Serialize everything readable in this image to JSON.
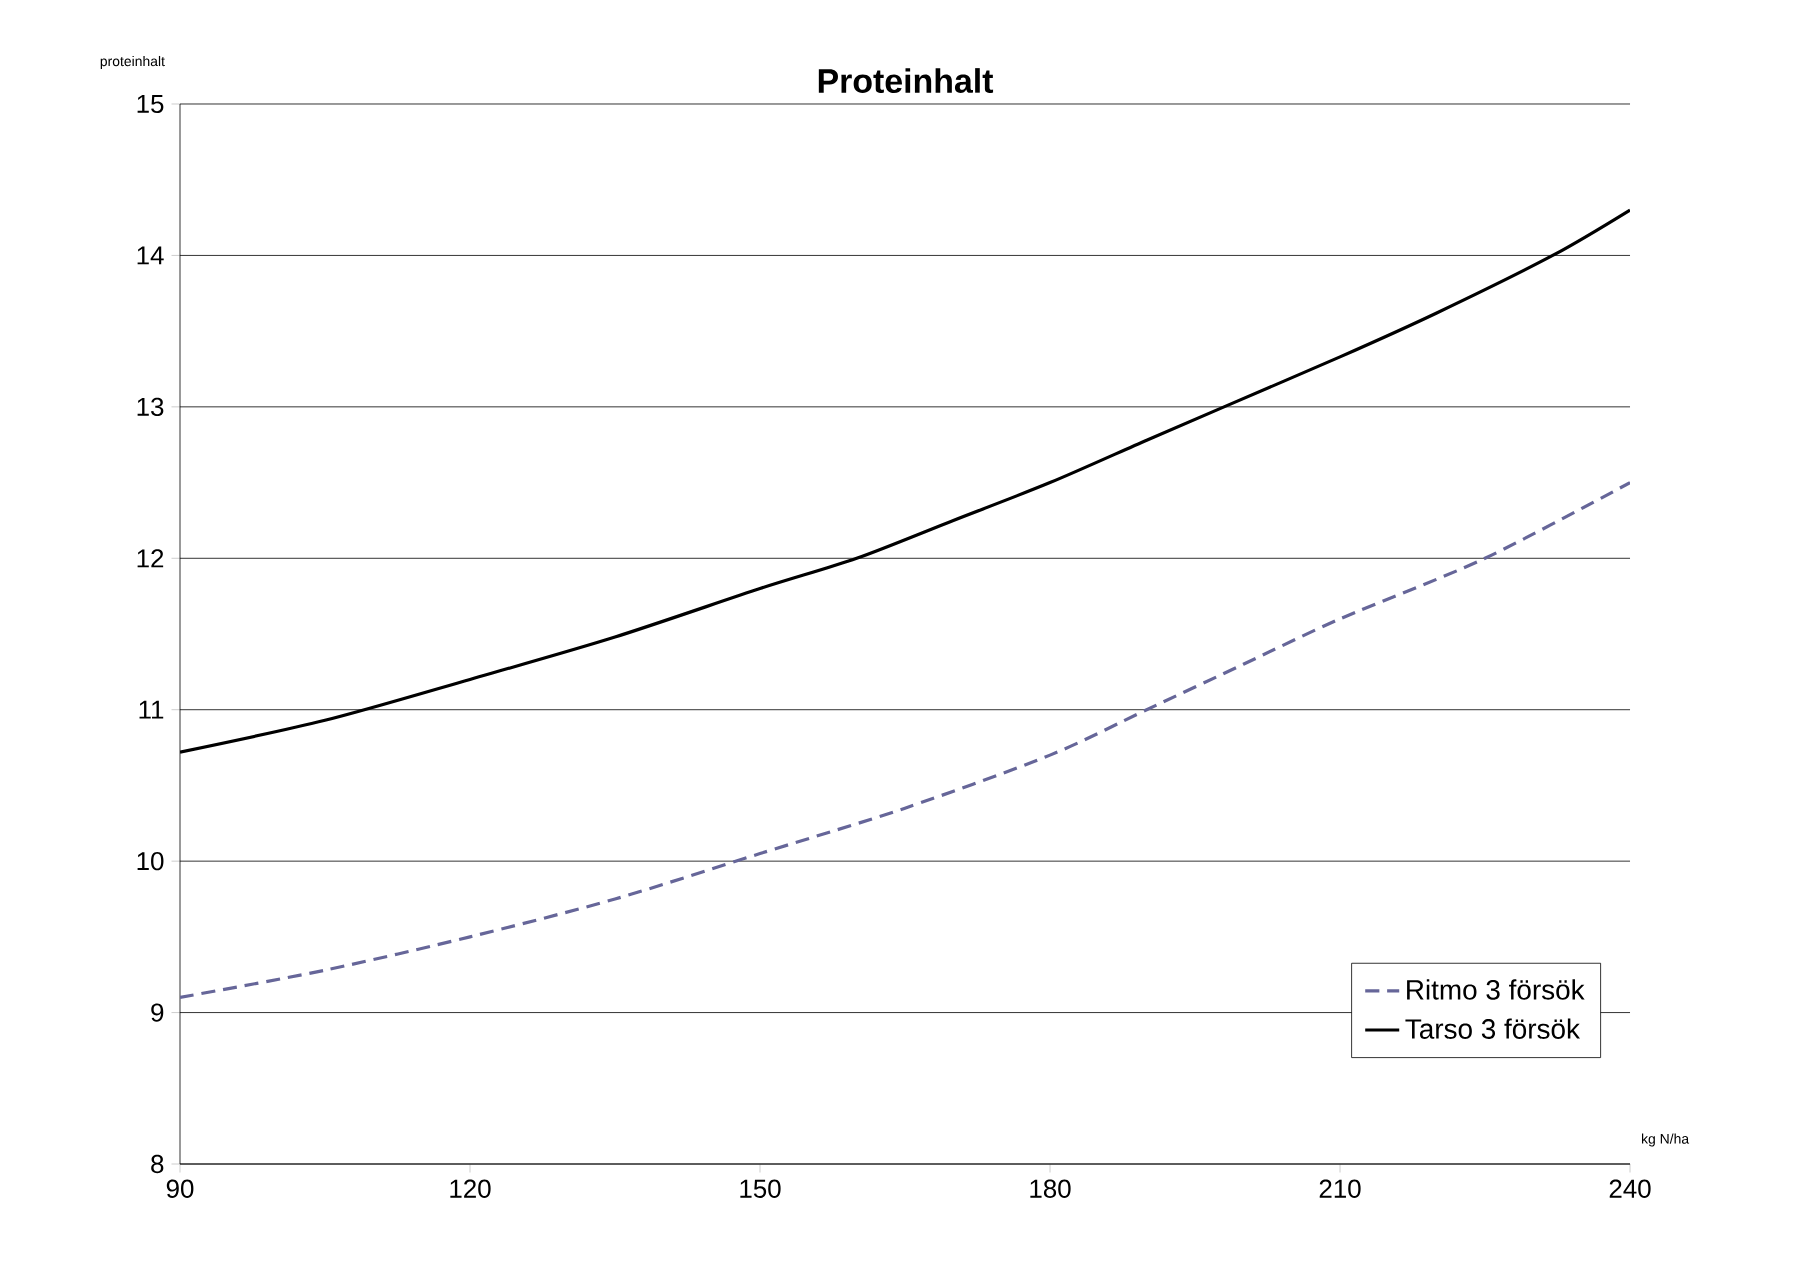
{
  "chart_data": {
    "type": "line",
    "title": "Proteinhalt",
    "xlabel": "kg N/ha",
    "ylabel": "proteinhalt",
    "xlim": [
      90,
      240
    ],
    "ylim": [
      8,
      15
    ],
    "xticks": [
      90,
      120,
      150,
      180,
      210,
      240
    ],
    "yticks": [
      8,
      9,
      10,
      11,
      12,
      13,
      14,
      15
    ],
    "grid": "y",
    "legend": "bottom right",
    "marker": "none",
    "series": [
      {
        "name": "Ritmo 3 försök",
        "color": "#666699",
        "line_style": "dashed",
        "x": [
          90,
          105,
          120,
          135,
          150,
          165,
          180,
          190,
          200,
          210,
          225,
          240
        ],
        "values": [
          9.1,
          9.28,
          9.5,
          9.75,
          10.05,
          10.35,
          10.7,
          11.0,
          11.3,
          11.6,
          12.0,
          12.5
        ]
      },
      {
        "name": "Tarso 3 försök",
        "color": "#000000",
        "line_style": "solid",
        "x": [
          90,
          105,
          120,
          135,
          150,
          160,
          170,
          180,
          190,
          198,
          210,
          220,
          232,
          240
        ],
        "values": [
          10.72,
          10.93,
          11.2,
          11.48,
          11.8,
          12.0,
          12.25,
          12.5,
          12.78,
          13.0,
          13.33,
          13.62,
          14.0,
          14.3
        ]
      }
    ]
  }
}
